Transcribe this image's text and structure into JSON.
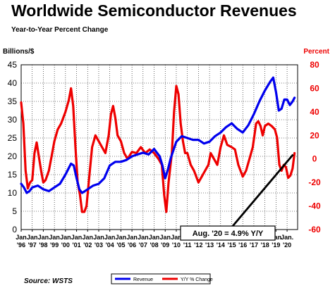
{
  "chart_data": {
    "type": "line",
    "title": "Worldwide Semiconductor Revenues",
    "subtitle": "Year-to-Year Percent Change",
    "ylabel_left": "Billions/$",
    "ylabel_right": "Percent",
    "ylim_left": [
      0,
      45
    ],
    "ylim_right": [
      -60,
      80
    ],
    "yticks_left": [
      "0",
      "5",
      "10",
      "15",
      "20",
      "25",
      "30",
      "35",
      "40",
      "45"
    ],
    "yticks_right": [
      "-60",
      "-40",
      "-20",
      "0",
      "20",
      "40",
      "60",
      "80"
    ],
    "xtick_top": [
      "Jan",
      "Jan",
      "Jan",
      "Jan",
      "Jan",
      "Jan",
      "Jan",
      "Jan",
      "Jan",
      "Jan",
      "Jan",
      "Jan",
      "Jan",
      "Jan",
      "Jan",
      "Jan",
      "Jan",
      "Jan",
      "Jan",
      "Jan",
      "Jan",
      "Jan",
      "Jan",
      "Jan",
      "Jan."
    ],
    "xtick_bottom": [
      "'96",
      "'97",
      "'98",
      "'99",
      "'00",
      "'01",
      "'02",
      "'03",
      "'04",
      "'05",
      "'06",
      "'07",
      "'08",
      "'09",
      "'10",
      "'11",
      "'12",
      "'13",
      "'14",
      "'15",
      "'16",
      "'17",
      "'18",
      "'19",
      "'20"
    ],
    "grid": true,
    "series": [
      {
        "name": "Revenue",
        "color": "#0000ee",
        "axis": "left",
        "x": [
          1996.0,
          1996.25,
          1996.5,
          1996.75,
          1997.0,
          1997.5,
          1998.0,
          1998.5,
          1999.0,
          1999.5,
          2000.0,
          2000.5,
          2000.75,
          2001.0,
          2001.25,
          2001.5,
          2001.75,
          2002.0,
          2002.5,
          2003.0,
          2003.5,
          2004.0,
          2004.5,
          2005.0,
          2005.5,
          2006.0,
          2006.5,
          2007.0,
          2007.5,
          2008.0,
          2008.5,
          2008.75,
          2009.0,
          2009.25,
          2009.5,
          2010.0,
          2010.5,
          2011.0,
          2011.5,
          2012.0,
          2012.5,
          2013.0,
          2013.5,
          2014.0,
          2014.5,
          2015.0,
          2015.5,
          2016.0,
          2016.5,
          2017.0,
          2017.5,
          2018.0,
          2018.5,
          2018.75,
          2019.0,
          2019.25,
          2019.5,
          2019.75,
          2020.0,
          2020.25,
          2020.5,
          2020.67
        ],
        "values": [
          12.5,
          11.5,
          10.0,
          10.5,
          11.5,
          12.0,
          11.0,
          10.5,
          11.5,
          12.5,
          15.0,
          18.0,
          17.5,
          14.0,
          11.0,
          10.0,
          10.5,
          11.0,
          12.0,
          12.5,
          14.0,
          17.5,
          18.5,
          18.5,
          19.0,
          20.0,
          20.5,
          21.0,
          20.5,
          22.0,
          20.0,
          17.5,
          14.0,
          16.5,
          19.5,
          24.0,
          25.5,
          25.0,
          24.5,
          24.5,
          23.5,
          24.0,
          25.5,
          26.5,
          28.0,
          29.0,
          27.5,
          26.5,
          28.5,
          31.5,
          35.0,
          38.0,
          40.5,
          41.5,
          37.5,
          32.5,
          33.0,
          35.5,
          35.5,
          34.0,
          35.0,
          36.0
        ]
      },
      {
        "name": "Y/Y % Change",
        "color": "#ee0000",
        "axis": "right",
        "x": [
          1996.0,
          1996.2,
          1996.4,
          1996.6,
          1996.8,
          1997.0,
          1997.2,
          1997.4,
          1997.6,
          1997.8,
          1998.0,
          1998.2,
          1998.5,
          1998.8,
          1999.0,
          1999.3,
          1999.6,
          2000.0,
          2000.3,
          2000.5,
          2000.7,
          2000.9,
          2001.1,
          2001.3,
          2001.5,
          2001.7,
          2001.9,
          2002.1,
          2002.4,
          2002.7,
          2003.0,
          2003.3,
          2003.6,
          2003.9,
          2004.1,
          2004.3,
          2004.5,
          2004.7,
          2005.0,
          2005.3,
          2005.6,
          2006.0,
          2006.4,
          2006.8,
          2007.2,
          2007.6,
          2008.0,
          2008.4,
          2008.7,
          2008.9,
          2009.1,
          2009.3,
          2009.6,
          2009.8,
          2010.0,
          2010.2,
          2010.4,
          2010.6,
          2010.8,
          2011.0,
          2011.3,
          2011.6,
          2012.0,
          2012.3,
          2012.6,
          2012.9,
          2013.1,
          2013.4,
          2013.7,
          2014.0,
          2014.3,
          2014.6,
          2015.0,
          2015.3,
          2015.6,
          2016.0,
          2016.3,
          2016.6,
          2016.9,
          2017.2,
          2017.4,
          2017.6,
          2017.8,
          2018.0,
          2018.3,
          2018.6,
          2018.9,
          2019.1,
          2019.3,
          2019.5,
          2019.7,
          2019.9,
          2020.1,
          2020.3,
          2020.5,
          2020.67
        ],
        "values": [
          48,
          30,
          -10,
          -25,
          -20,
          -18,
          5,
          14,
          2,
          -10,
          -20,
          -18,
          -10,
          5,
          15,
          25,
          30,
          40,
          50,
          60,
          45,
          10,
          -20,
          -30,
          -45,
          -45,
          -40,
          -20,
          10,
          20,
          15,
          10,
          5,
          20,
          38,
          45,
          35,
          20,
          15,
          5,
          0,
          6,
          5,
          10,
          5,
          8,
          5,
          0,
          -5,
          -30,
          -45,
          -20,
          5,
          40,
          62,
          55,
          30,
          15,
          5,
          5,
          -5,
          -10,
          -20,
          -15,
          -10,
          -5,
          5,
          0,
          -5,
          10,
          20,
          12,
          10,
          8,
          -5,
          -15,
          -10,
          0,
          10,
          30,
          32,
          28,
          20,
          28,
          30,
          28,
          25,
          18,
          -5,
          -10,
          -5,
          -7,
          -16,
          -14,
          -8,
          4.9
        ]
      }
    ],
    "annotations": [
      {
        "text": "Aug. '20 = 4.9% Y/Y",
        "x": 2020.67,
        "y": 4.9,
        "axis": "right"
      }
    ]
  },
  "legend": [
    {
      "label": "Revenue",
      "color": "#0000ee"
    },
    {
      "label": "Y/Y % Change",
      "color": "#ee0000"
    }
  ],
  "source": "Source: WSTS",
  "colors": {
    "left_axis": "#000000",
    "right_axis": "#ee0000",
    "grid": "#000000"
  }
}
